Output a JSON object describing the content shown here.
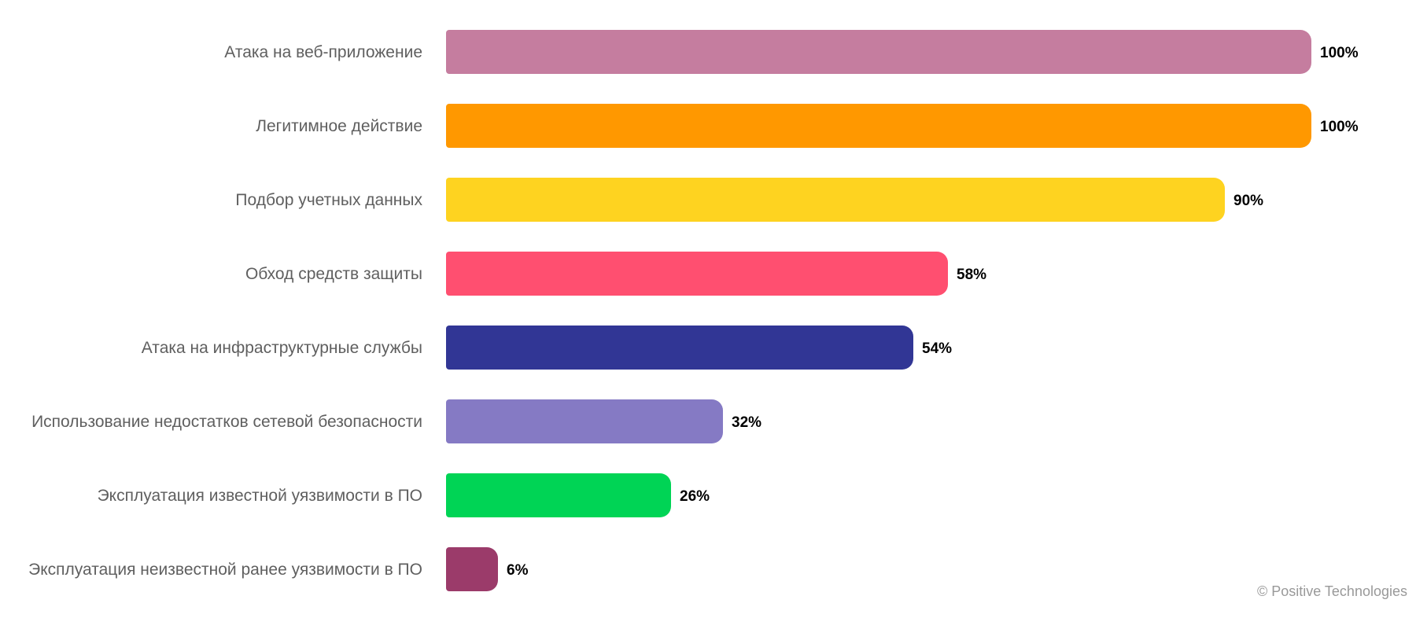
{
  "chart_data": {
    "type": "bar",
    "orientation": "horizontal",
    "categories": [
      "Атака на веб-приложение",
      "Легитимное действие",
      "Подбор учетных данных",
      "Обход средств защиты",
      "Атака на инфраструктурные службы",
      "Использование недостатков сетевой безопасности",
      "Эксплуатация известной уязвимости в ПО",
      "Эксплуатация неизвестной ранее уязвимости в ПО"
    ],
    "values": [
      100,
      100,
      90,
      58,
      54,
      32,
      26,
      6
    ],
    "value_labels": [
      "100%",
      "100%",
      "90%",
      "58%",
      "54%",
      "32%",
      "26%",
      "6%"
    ],
    "colors": [
      "#c57d9f",
      "#ff9800",
      "#fed320",
      "#ff4f70",
      "#313695",
      "#857ac4",
      "#00d455",
      "#9b3b6a"
    ],
    "xlim": [
      0,
      100
    ],
    "unit": "%",
    "grid": false,
    "title": "",
    "xlabel": "",
    "ylabel": ""
  },
  "footer": {
    "copyright": "© Positive Technologies"
  }
}
